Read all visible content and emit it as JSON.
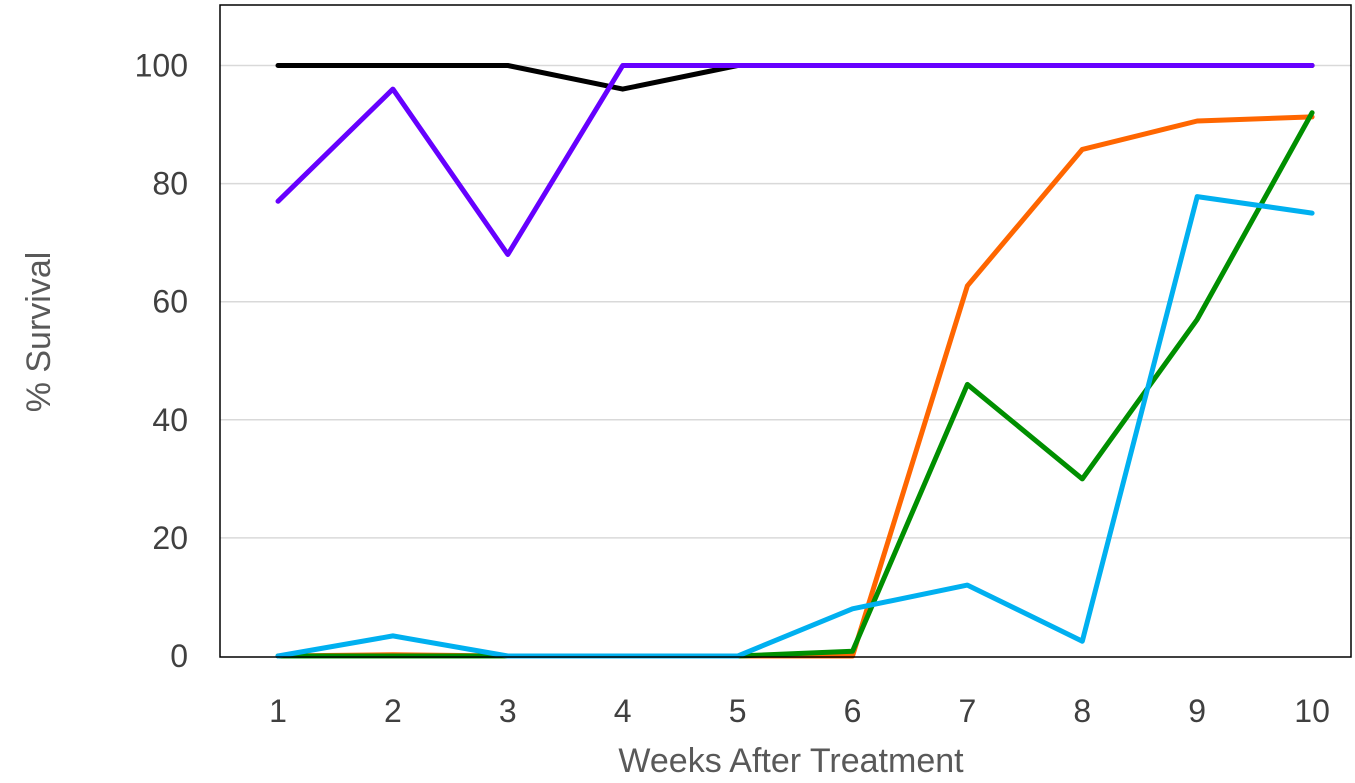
{
  "chart_data": {
    "type": "line",
    "title": "",
    "xlabel": "Weeks After Treatment",
    "ylabel": "% Survival",
    "x": [
      1,
      2,
      3,
      4,
      5,
      6,
      7,
      8,
      9,
      10
    ],
    "ylim": [
      0,
      100
    ],
    "yticks": [
      0,
      20,
      40,
      60,
      80,
      100
    ],
    "grid": true,
    "legend": "none",
    "series": [
      {
        "color": "#000000",
        "values": [
          100,
          100,
          100,
          96,
          100,
          100,
          100,
          100,
          100,
          100
        ]
      },
      {
        "color": "#6600ff",
        "values": [
          77,
          96,
          68,
          100,
          100,
          100,
          100,
          100,
          100,
          100
        ]
      },
      {
        "color": "#ff6600",
        "values": [
          0,
          0.2,
          0,
          0,
          0,
          0,
          62.7,
          85.8,
          90.6,
          91.3
        ]
      },
      {
        "color": "#008f00",
        "values": [
          0,
          0,
          0,
          0,
          0,
          0.8,
          46,
          30,
          57,
          92
        ]
      },
      {
        "color": "#00b0f0",
        "values": [
          0,
          3.4,
          0,
          0,
          0,
          8,
          12,
          2.5,
          77.8,
          75
        ]
      }
    ]
  }
}
